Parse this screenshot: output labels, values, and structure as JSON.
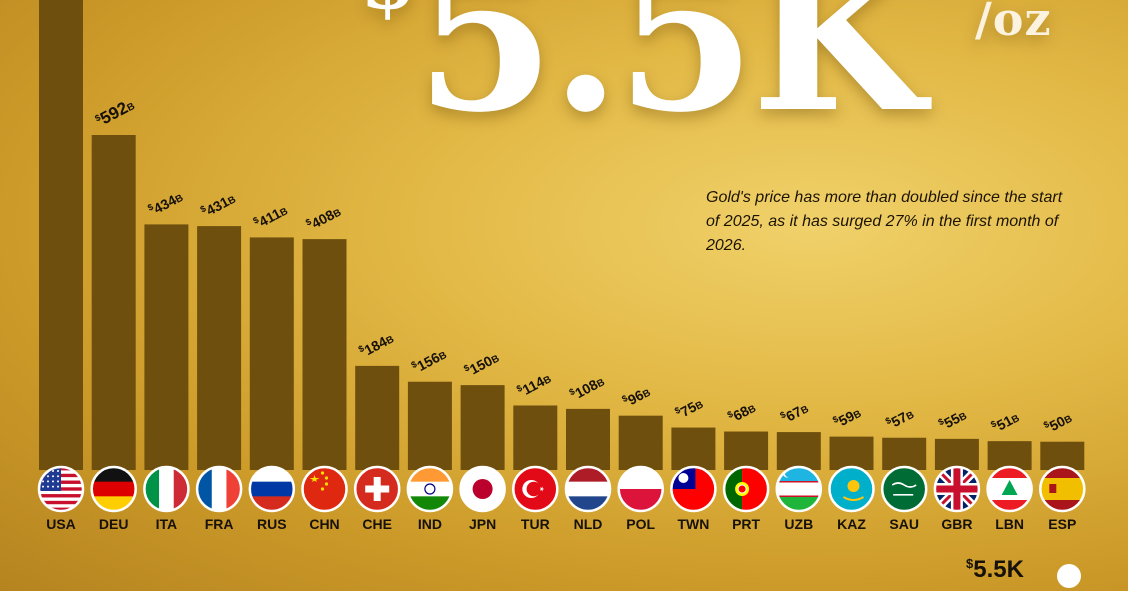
{
  "header": {
    "price_currency": "$",
    "price_value": "5.5K",
    "price_unit": "/oz",
    "subtitle": "Gold's price has more than doubled since the start of 2025, as it has surged 27% in the first month of 2026."
  },
  "legend": {
    "currency": "$",
    "value": "5.5K"
  },
  "chart_data": {
    "type": "bar",
    "categories": [
      "USA",
      "DEU",
      "ITA",
      "FRA",
      "RUS",
      "CHN",
      "CHE",
      "IND",
      "JPN",
      "TUR",
      "NLD",
      "POL",
      "TWN",
      "PRT",
      "UZB",
      "KAZ",
      "SAU",
      "GBR",
      "LBN",
      "ESP"
    ],
    "values": [
      null,
      592,
      434,
      431,
      411,
      408,
      184,
      156,
      150,
      114,
      108,
      96,
      75,
      68,
      67,
      59,
      57,
      55,
      51,
      50
    ],
    "value_labels": [
      "",
      "592B",
      "434B",
      "431B",
      "411B",
      "408B",
      "184B",
      "156B",
      "150B",
      "114B",
      "108B",
      "96B",
      "75B",
      "68B",
      "67B",
      "59B",
      "57B",
      "55B",
      "51B",
      "50B"
    ],
    "value_prefix": "$",
    "unit": "B",
    "flags": [
      "flag-usa",
      "flag-germany",
      "flag-italy",
      "flag-france",
      "flag-russia",
      "flag-china",
      "flag-switzerland",
      "flag-india",
      "flag-japan",
      "flag-turkey",
      "flag-netherlands",
      "flag-poland",
      "flag-taiwan",
      "flag-portugal",
      "flag-uzbekistan",
      "flag-kazakhstan",
      "flag-saudi-arabia",
      "flag-united-kingdom",
      "flag-lebanon",
      "flag-spain"
    ],
    "colors": {
      "bar": "#6f4f0d",
      "label": "#17110a"
    },
    "title": "",
    "xlabel": "",
    "ylabel": "",
    "grid": false
  }
}
